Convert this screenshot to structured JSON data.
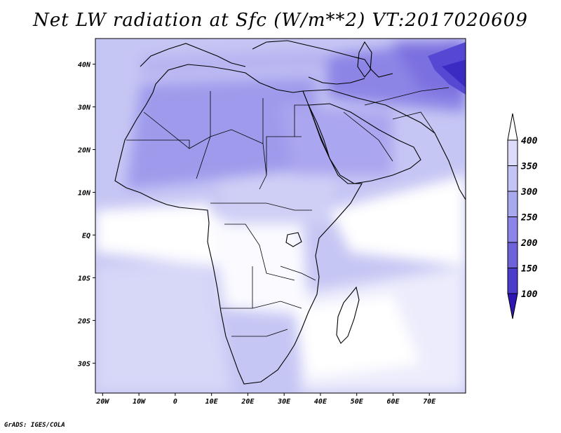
{
  "title": "Net LW radiation at Sfc (W/m**2) VT:2017020609",
  "credit": "GrADS: IGES/COLA",
  "map": {
    "lon_range": [
      -22,
      80
    ],
    "lat_range": [
      -37,
      46
    ],
    "lon_ticks": [
      {
        "lon": -20,
        "label": "20W"
      },
      {
        "lon": -10,
        "label": "10W"
      },
      {
        "lon": 0,
        "label": "0"
      },
      {
        "lon": 10,
        "label": "10E"
      },
      {
        "lon": 20,
        "label": "20E"
      },
      {
        "lon": 30,
        "label": "30E"
      },
      {
        "lon": 40,
        "label": "40E"
      },
      {
        "lon": 50,
        "label": "50E"
      },
      {
        "lon": 60,
        "label": "60E"
      },
      {
        "lon": 70,
        "label": "70E"
      }
    ],
    "lat_ticks": [
      {
        "lat": 40,
        "label": "40N"
      },
      {
        "lat": 30,
        "label": "30N"
      },
      {
        "lat": 20,
        "label": "20N"
      },
      {
        "lat": 10,
        "label": "10N"
      },
      {
        "lat": 0,
        "label": "EQ"
      },
      {
        "lat": -10,
        "label": "10S"
      },
      {
        "lat": -20,
        "label": "20S"
      },
      {
        "lat": -30,
        "label": "30S"
      }
    ]
  },
  "colorbar": {
    "labels": [
      "400",
      "350",
      "300",
      "250",
      "200",
      "150",
      "100"
    ],
    "colors": [
      "#ffffff",
      "#dcdcfa",
      "#c3c3f5",
      "#a8a8ef",
      "#8c84e6",
      "#6e62db",
      "#4b3ccc",
      "#2d16b4"
    ]
  }
}
